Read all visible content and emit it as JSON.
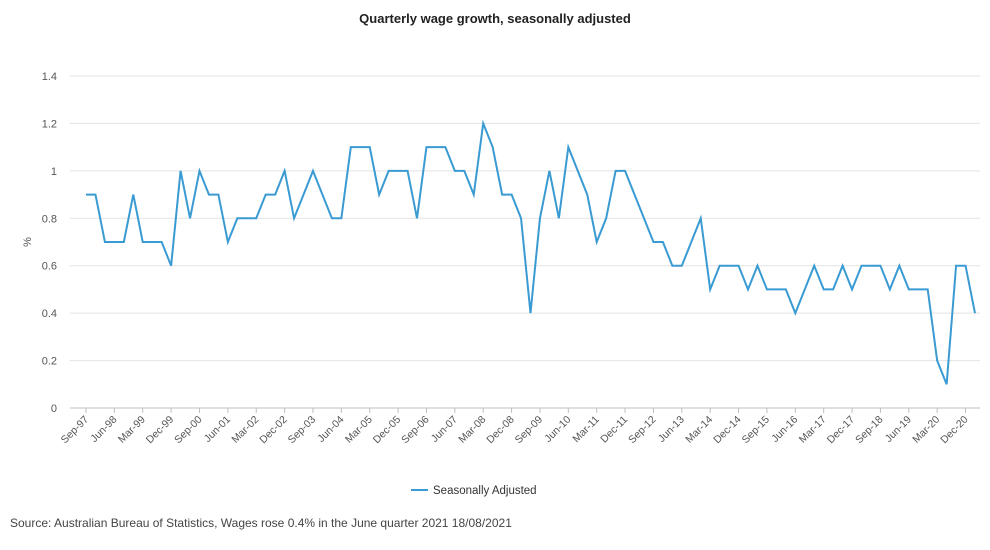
{
  "chart_data": {
    "type": "line",
    "title": "Quarterly wage growth, seasonally adjusted",
    "ylabel": "%",
    "xlabel": "",
    "ylim": [
      0,
      1.4
    ],
    "yticks": [
      0,
      0.2,
      0.4,
      0.6,
      0.8,
      1,
      1.2,
      1.4
    ],
    "y_tick_labels": [
      "0",
      "0.2",
      "0.4",
      "0.6",
      "0.8",
      "1",
      "1.2",
      "1.4"
    ],
    "grid": true,
    "legend_position": "bottom",
    "x_tick_labels": [
      "Sep-97",
      "Jun-98",
      "Mar-99",
      "Dec-99",
      "Sep-00",
      "Jun-01",
      "Mar-02",
      "Dec-02",
      "Sep-03",
      "Jun-04",
      "Mar-05",
      "Dec-05",
      "Sep-06",
      "Jun-07",
      "Mar-08",
      "Dec-08",
      "Sep-09",
      "Jun-10",
      "Mar-11",
      "Dec-11",
      "Sep-12",
      "Jun-13",
      "Mar-14",
      "Dec-14",
      "Sep-15",
      "Jun-16",
      "Mar-17",
      "Dec-17",
      "Sep-18",
      "Jun-19",
      "Mar-20",
      "Dec-20"
    ],
    "series": [
      {
        "name": "Seasonally Adjusted",
        "color": "#3a9ad2",
        "values": [
          0.9,
          0.9,
          0.7,
          0.7,
          0.7,
          0.9,
          0.7,
          0.7,
          0.7,
          0.6,
          1.0,
          0.8,
          1.0,
          0.9,
          0.9,
          0.7,
          0.8,
          0.8,
          0.8,
          0.9,
          0.9,
          1.0,
          0.8,
          0.9,
          1.0,
          0.9,
          0.8,
          0.8,
          1.1,
          1.1,
          1.1,
          0.9,
          1.0,
          1.0,
          1.0,
          0.8,
          1.1,
          1.1,
          1.1,
          1.0,
          1.0,
          0.9,
          1.2,
          1.1,
          0.9,
          0.9,
          0.8,
          0.4,
          0.8,
          1.0,
          0.8,
          1.1,
          1.0,
          0.9,
          0.7,
          0.8,
          1.0,
          1.0,
          0.9,
          0.8,
          0.7,
          0.7,
          0.6,
          0.6,
          0.7,
          0.8,
          0.5,
          0.6,
          0.6,
          0.6,
          0.5,
          0.6,
          0.5,
          0.5,
          0.5,
          0.4,
          0.5,
          0.6,
          0.5,
          0.5,
          0.6,
          0.5,
          0.6,
          0.6,
          0.6,
          0.5,
          0.6,
          0.5,
          0.5,
          0.5,
          0.2,
          0.1,
          0.6,
          0.6,
          0.4
        ]
      }
    ]
  },
  "source": "Source: Australian Bureau of Statistics, Wages rose 0.4% in the June quarter 2021 18/08/2021"
}
